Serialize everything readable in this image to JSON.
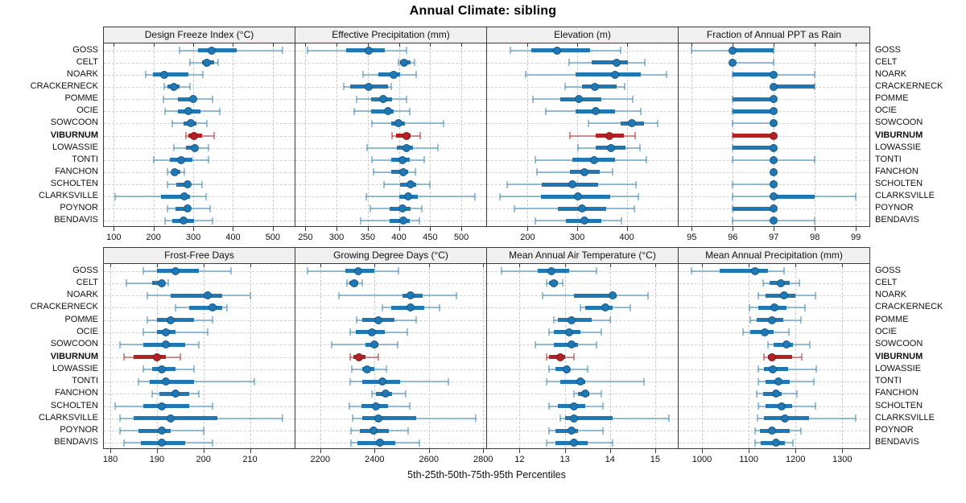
{
  "title": "Annual Climate: sibling",
  "caption": "5th-25th-50th-75th-95th Percentiles",
  "highlight_site": "VIBURNUM",
  "colors": {
    "series": "#1f77b4",
    "series_light": "rgba(31,119,180,0.45)",
    "highlight": "#b22222",
    "highlight_light": "rgba(178,34,34,0.5)",
    "grid": "#c9c9c9",
    "panel_border": "#3a3a3a",
    "header_bg": "#f0f0f0"
  },
  "sites": [
    "GOSS",
    "CELT",
    "NOARK",
    "CRACKERNECK",
    "POMME",
    "OCIE",
    "SOWCOON",
    "VIBURNUM",
    "LOWASSIE",
    "TONTI",
    "FANCHON",
    "SCHOLTEN",
    "CLARKSVILLE",
    "POYNOR",
    "BENDAVIS"
  ],
  "chart_data": [
    {
      "type": "percentile-dotplot",
      "title": "Design Freeze Index (°C)",
      "xlim": [
        75,
        555
      ],
      "ticks": [
        100,
        200,
        300,
        400,
        500
      ],
      "percentiles": [
        5,
        25,
        50,
        75,
        95
      ],
      "values": [
        [
          265,
          312,
          347,
          409,
          525
        ],
        [
          292,
          322,
          335,
          352,
          362
        ],
        [
          181,
          198,
          226,
          288,
          325
        ],
        [
          226,
          234,
          251,
          265,
          291
        ],
        [
          224,
          261,
          300,
          305,
          349
        ],
        [
          228,
          261,
          288,
          318,
          366
        ],
        [
          247,
          275,
          293,
          308,
          334
        ],
        [
          282,
          288,
          302,
          322,
          353
        ],
        [
          251,
          282,
          303,
          312,
          339
        ],
        [
          201,
          241,
          269,
          298,
          339
        ],
        [
          236,
          245,
          253,
          268,
          278
        ],
        [
          236,
          258,
          285,
          292,
          322
        ],
        [
          103,
          218,
          278,
          292,
          332
        ],
        [
          236,
          255,
          285,
          292,
          342
        ],
        [
          228,
          247,
          276,
          302,
          349
        ]
      ]
    },
    {
      "type": "percentile-dotplot",
      "title": "Effective Precipitation (mm)",
      "xlim": [
        234,
        540
      ],
      "ticks": [
        250,
        300,
        350,
        400,
        450,
        500
      ],
      "percentiles": [
        5,
        25,
        50,
        75,
        95
      ],
      "values": [
        [
          254,
          315,
          351,
          377,
          412
        ],
        [
          399,
          402,
          408,
          419,
          425
        ],
        [
          342,
          367,
          392,
          402,
          428
        ],
        [
          312,
          322,
          352,
          383,
          388
        ],
        [
          332,
          356,
          375,
          389,
          412
        ],
        [
          328,
          356,
          382,
          391,
          417
        ],
        [
          357,
          387,
          399,
          410,
          472
        ],
        [
          389,
          395,
          412,
          419,
          434
        ],
        [
          349,
          397,
          412,
          423,
          462
        ],
        [
          357,
          387,
          406,
          417,
          441
        ],
        [
          359,
          387,
          407,
          415,
          427
        ],
        [
          376,
          402,
          418,
          428,
          449
        ],
        [
          347,
          400,
          415,
          430,
          522
        ],
        [
          354,
          385,
          406,
          419,
          437
        ],
        [
          339,
          385,
          407,
          418,
          433
        ]
      ]
    },
    {
      "type": "percentile-dotplot",
      "title": "Elevation (m)",
      "xlim": [
        118,
        503
      ],
      "ticks": [
        200,
        300,
        400
      ],
      "percentiles": [
        5,
        25,
        50,
        75,
        95
      ],
      "values": [
        [
          165,
          207,
          259,
          326,
          388
        ],
        [
          284,
          329,
          380,
          402,
          437
        ],
        [
          196,
          296,
          377,
          429,
          481
        ],
        [
          275,
          310,
          336,
          380,
          396
        ],
        [
          211,
          266,
          304,
          348,
          412
        ],
        [
          236,
          296,
          338,
          377,
          429
        ],
        [
          322,
          388,
          410,
          434,
          463
        ],
        [
          285,
          337,
          365,
          394,
          417
        ],
        [
          302,
          338,
          368,
          398,
          427
        ],
        [
          216,
          291,
          334,
          377,
          439
        ],
        [
          219,
          285,
          315,
          345,
          371
        ],
        [
          158,
          229,
          290,
          342,
          418
        ],
        [
          144,
          227,
          302,
          366,
          423
        ],
        [
          173,
          261,
          310,
          359,
          416
        ],
        [
          216,
          277,
          315,
          348,
          389
        ]
      ]
    },
    {
      "type": "percentile-dotplot",
      "title": "Fraction of Annual PPT as Rain",
      "xlim": [
        94.68,
        99.33
      ],
      "ticks": [
        95,
        96,
        97,
        98,
        99
      ],
      "percentiles": [
        5,
        25,
        50,
        75,
        95
      ],
      "values": [
        [
          95,
          96,
          96,
          97,
          97
        ],
        [
          96,
          96,
          96,
          96,
          97
        ],
        [
          96,
          96,
          97,
          97,
          98
        ],
        [
          97,
          97,
          97,
          98,
          98
        ],
        [
          96,
          96,
          97,
          97,
          97
        ],
        [
          96,
          96,
          97,
          97,
          97
        ],
        [
          96,
          97,
          97,
          97,
          97
        ],
        [
          96,
          96,
          97,
          97,
          97
        ],
        [
          96,
          96,
          97,
          97,
          97
        ],
        [
          96,
          97,
          97,
          97,
          98
        ],
        [
          97,
          97,
          97,
          97,
          97
        ],
        [
          96,
          97,
          97,
          97,
          97
        ],
        [
          96,
          97,
          97,
          98,
          99
        ],
        [
          96,
          96,
          97,
          97,
          97
        ],
        [
          96,
          97,
          97,
          97,
          98
        ]
      ]
    },
    {
      "type": "percentile-dotplot",
      "title": "Frost-Free Days",
      "xlim": [
        178.6,
        219.6
      ],
      "ticks": [
        180,
        190,
        200,
        210
      ],
      "percentiles": [
        5,
        25,
        50,
        75,
        95
      ],
      "values": [
        [
          187,
          190,
          194,
          199,
          206
        ],
        [
          183.5,
          189,
          191,
          191.5,
          192.5
        ],
        [
          188,
          193,
          201,
          204,
          210
        ],
        [
          194,
          197,
          202,
          204,
          205
        ],
        [
          188,
          190,
          193,
          198,
          202
        ],
        [
          187,
          190,
          192,
          194,
          201
        ],
        [
          182,
          187,
          192,
          196,
          199
        ],
        [
          183,
          185,
          190,
          192,
          195
        ],
        [
          187,
          189,
          191,
          194,
          198
        ],
        [
          186,
          188.5,
          192,
          198,
          211
        ],
        [
          189,
          190.5,
          194,
          197,
          199
        ],
        [
          181,
          187,
          191,
          197,
          202
        ],
        [
          182,
          185,
          193,
          203,
          217
        ],
        [
          182,
          186,
          191,
          193,
          200
        ],
        [
          183,
          186.5,
          191,
          196,
          202
        ]
      ]
    },
    {
      "type": "percentile-dotplot",
      "title": "Growing Degree Days (°C)",
      "xlim": [
        2109,
        2811
      ],
      "ticks": [
        2200,
        2400,
        2600,
        2800
      ],
      "percentiles": [
        5,
        25,
        50,
        75,
        95
      ],
      "values": [
        [
          2154,
          2292,
          2339,
          2400,
          2487
        ],
        [
          2299,
          2307,
          2326,
          2341,
          2356
        ],
        [
          2269,
          2504,
          2534,
          2578,
          2700
        ],
        [
          2430,
          2460,
          2534,
          2583,
          2640
        ],
        [
          2334,
          2354,
          2415,
          2473,
          2552
        ],
        [
          2309,
          2331,
          2390,
          2437,
          2522
        ],
        [
          2242,
          2368,
          2400,
          2415,
          2486
        ],
        [
          2309,
          2321,
          2344,
          2368,
          2415
        ],
        [
          2315,
          2354,
          2374,
          2400,
          2443
        ],
        [
          2311,
          2356,
          2430,
          2494,
          2672
        ],
        [
          2390,
          2405,
          2440,
          2465,
          2515
        ],
        [
          2307,
          2351,
          2405,
          2450,
          2529
        ],
        [
          2318,
          2354,
          2415,
          2553,
          2772
        ],
        [
          2314,
          2346,
          2397,
          2453,
          2524
        ],
        [
          2314,
          2338,
          2420,
          2476,
          2565
        ]
      ]
    },
    {
      "type": "percentile-dotplot",
      "title": "Mean Annual Air Temperature (°C)",
      "xlim": [
        11.28,
        15.5
      ],
      "ticks": [
        12,
        13,
        14,
        15
      ],
      "percentiles": [
        5,
        25,
        50,
        75,
        95
      ],
      "values": [
        [
          11.6,
          12.4,
          12.7,
          13.1,
          13.7
        ],
        [
          12.6,
          12.65,
          12.75,
          12.85,
          12.95
        ],
        [
          12.5,
          13.2,
          14.05,
          14.15,
          14.85
        ],
        [
          13.35,
          13.45,
          13.9,
          14.05,
          14.45
        ],
        [
          12.75,
          12.85,
          13.15,
          13.6,
          14.0
        ],
        [
          12.65,
          12.75,
          13.1,
          13.35,
          13.8
        ],
        [
          12.35,
          12.75,
          13.15,
          13.3,
          13.7
        ],
        [
          12.6,
          12.65,
          12.9,
          13.0,
          13.2
        ],
        [
          12.65,
          12.8,
          13.05,
          13.1,
          13.5
        ],
        [
          12.6,
          12.9,
          13.35,
          13.45,
          14.75
        ],
        [
          13.2,
          13.3,
          13.45,
          13.55,
          13.8
        ],
        [
          12.65,
          12.85,
          13.2,
          13.45,
          13.85
        ],
        [
          12.9,
          13.0,
          13.2,
          14.05,
          15.3
        ],
        [
          12.65,
          12.8,
          13.15,
          13.3,
          13.85
        ],
        [
          12.6,
          12.8,
          13.2,
          13.5,
          14.05
        ]
      ]
    },
    {
      "type": "percentile-dotplot",
      "title": "Mean Annual Precipitation (mm)",
      "xlim": [
        950,
        1358
      ],
      "ticks": [
        1000,
        1100,
        1200,
        1300
      ],
      "percentiles": [
        5,
        25,
        50,
        75,
        95
      ],
      "values": [
        [
          977,
          1038,
          1114,
          1141,
          1175
        ],
        [
          1130,
          1145,
          1168,
          1188,
          1208
        ],
        [
          1120,
          1136,
          1175,
          1200,
          1242
        ],
        [
          1101,
          1121,
          1154,
          1180,
          1220
        ],
        [
          1104,
          1117,
          1149,
          1173,
          1212
        ],
        [
          1088,
          1104,
          1134,
          1153,
          1186
        ],
        [
          1141,
          1153,
          1180,
          1194,
          1231
        ],
        [
          1132,
          1141,
          1149,
          1192,
          1214
        ],
        [
          1121,
          1132,
          1152,
          1184,
          1245
        ],
        [
          1121,
          1136,
          1163,
          1187,
          1239
        ],
        [
          1117,
          1130,
          1158,
          1171,
          1203
        ],
        [
          1121,
          1136,
          1171,
          1193,
          1242
        ],
        [
          1118,
          1132,
          1177,
          1229,
          1329
        ],
        [
          1113,
          1124,
          1149,
          1188,
          1211
        ],
        [
          1113,
          1126,
          1158,
          1177,
          1194
        ]
      ]
    }
  ]
}
